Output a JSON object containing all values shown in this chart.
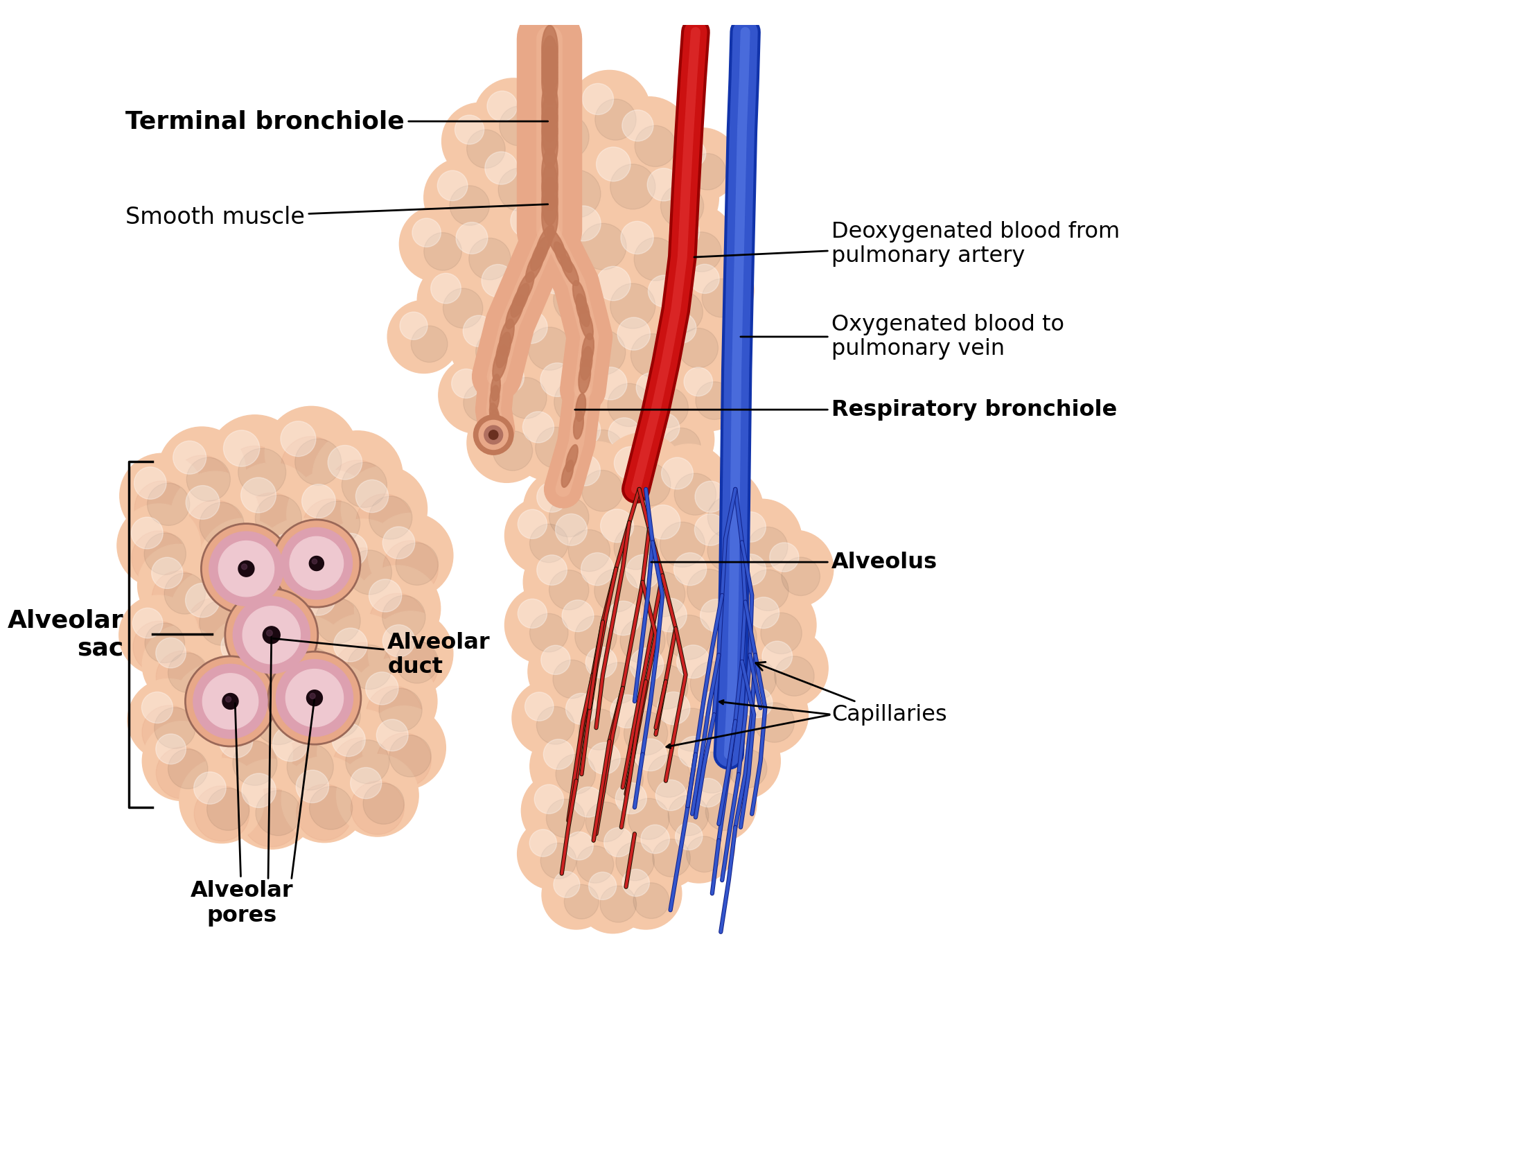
{
  "background_color": "#ffffff",
  "labels": {
    "terminal_bronchiole": "Terminal bronchiole",
    "smooth_muscle": "Smooth muscle",
    "alveolar_sac": "Alveolar\nsac",
    "alveolar_duct": "Alveolar\nduct",
    "alveolar_pores": "Alveolar\npores",
    "deoxygenated": "Deoxygenated blood from\npulmonary artery",
    "oxygenated": "Oxygenated blood to\npulmonary vein",
    "respiratory_bronchiole": "Respiratory bronchiole",
    "alveolus": "Alveolus",
    "capillaries": "Capillaries"
  },
  "colors": {
    "alveoli_light": "#f5c8a8",
    "alveoli_mid": "#e8a888",
    "alveoli_dark": "#d08868",
    "alveoli_highlight": "#fde8d8",
    "bronchiole_body": "#e8a888",
    "bronchiole_ring": "#c07858",
    "bronchiole_inner": "#f0b898",
    "red_vessel": "#cc1111",
    "red_vessel_dark": "#990000",
    "blue_vessel": "#3355cc",
    "blue_vessel_light": "#6688ee",
    "capillary_red": "#cc2222",
    "capillary_blue": "#2244bb",
    "capillary_dark": "#221100",
    "pore_outer": "#d09090",
    "pore_inner": "#e8b8c8",
    "pore_dark": "#1a0810",
    "annotation": "#000000"
  },
  "figsize": [
    21.88,
    16.71
  ],
  "dpi": 100
}
